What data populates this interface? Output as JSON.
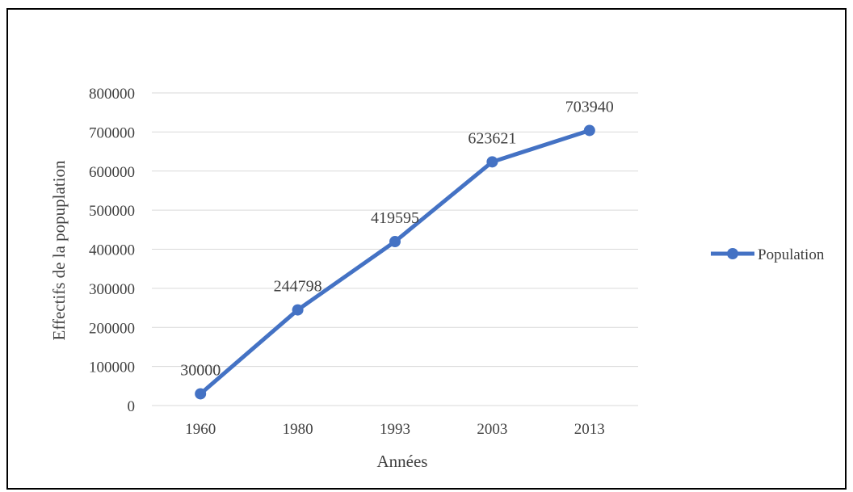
{
  "chart_data": {
    "type": "line",
    "categories": [
      "1960",
      "1980",
      "1993",
      "2003",
      "2013"
    ],
    "series": [
      {
        "name": "Population",
        "values": [
          30000,
          244798,
          419595,
          623621,
          703940
        ],
        "data_labels": [
          "30000",
          "244798",
          "419595",
          "623621",
          "703940"
        ]
      }
    ],
    "title": "",
    "xlabel": "Années",
    "ylabel": "Effectifs de la popuplation",
    "ylim": [
      0,
      800000
    ],
    "y_ticks": [
      "0",
      "100000",
      "200000",
      "300000",
      "400000",
      "500000",
      "600000",
      "700000",
      "800000"
    ],
    "grid": true,
    "legend_position": "right",
    "colors": {
      "series": "#4472C4",
      "grid": "#D9D9D9",
      "text": "#404040"
    }
  }
}
